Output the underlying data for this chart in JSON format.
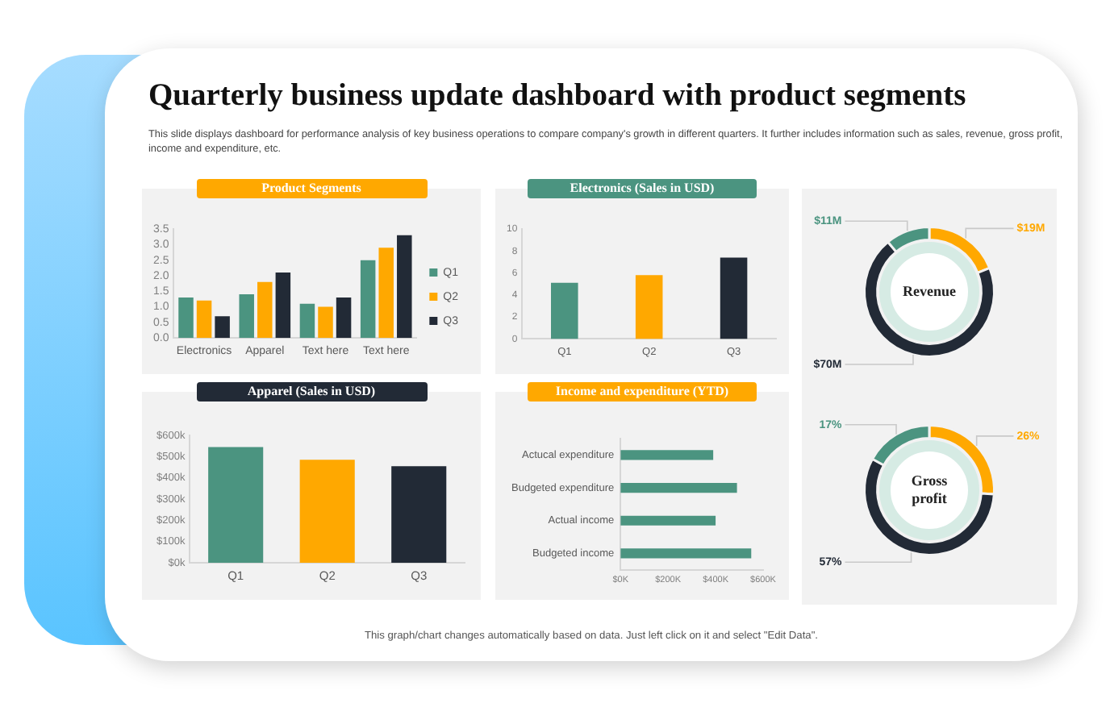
{
  "chart_data": [
    {
      "type": "other",
      "title": "Quarterly business update dashboard with product segments",
      "subtitle": "This slide displays dashboard for performance analysis of key business operations to compare company's growth in different quarters. It further includes information such as sales, revenue, gross profit, income and expenditure, etc.",
      "annotations": [
        "This graph/chart changes automatically based on data. Just left click on it and select \"Edit Data\"."
      ]
    },
    {
      "type": "bar",
      "title": "Product Segments",
      "categories": [
        "Electronics",
        "Apparel",
        "Text here",
        "Text here"
      ],
      "series": [
        {
          "name": "Q1",
          "color": "#4b9480",
          "values": [
            1.3,
            1.4,
            1.1,
            2.5
          ]
        },
        {
          "name": "Q2",
          "color": "#ffa800",
          "values": [
            1.2,
            1.8,
            1.0,
            2.9
          ]
        },
        {
          "name": "Q3",
          "color": "#222a36",
          "values": [
            0.7,
            2.1,
            1.3,
            3.3
          ]
        }
      ],
      "ylim": [
        0,
        3.5
      ],
      "yticks": [
        {
          "value": 0,
          "label": "0.0"
        },
        {
          "value": 0.5,
          "label": "0.5"
        },
        {
          "value": 1,
          "label": "1.0"
        },
        {
          "value": 1.5,
          "label": "1.5"
        },
        {
          "value": 2,
          "label": "2.0"
        },
        {
          "value": 2.5,
          "label": "2.5"
        },
        {
          "value": 3,
          "label": "3.0"
        },
        {
          "value": 3.5,
          "label": "3.5"
        }
      ],
      "legend": "right"
    },
    {
      "type": "bar",
      "title": "Electronics (Sales in USD)",
      "categories": [
        "Q1",
        "Q2",
        "Q3"
      ],
      "values": [
        5.1,
        5.8,
        7.4
      ],
      "colors": [
        "#4b9480",
        "#ffa800",
        "#222a36"
      ],
      "ylim": [
        0,
        10
      ],
      "yticks": [
        0,
        2,
        4,
        6,
        8,
        10
      ]
    },
    {
      "type": "bar",
      "title": "Apparel (Sales in USD)",
      "categories": [
        "Q1",
        "Q2",
        "Q3"
      ],
      "values": [
        545,
        485,
        455
      ],
      "colors": [
        "#4b9480",
        "#ffa800",
        "#222a36"
      ],
      "ylim": [
        0,
        600
      ],
      "yticks": [
        {
          "value": 0,
          "label": "$0k"
        },
        {
          "value": 100,
          "label": "$100k"
        },
        {
          "value": 200,
          "label": "$200k"
        },
        {
          "value": 300,
          "label": "$300k"
        },
        {
          "value": 400,
          "label": "$400k"
        },
        {
          "value": 500,
          "label": "$500k"
        },
        {
          "value": 600,
          "label": "$600k"
        }
      ]
    },
    {
      "type": "bar",
      "orientation": "horizontal",
      "title": "Income and expenditure (YTD)",
      "categories": [
        "Actucal expenditure",
        "Budgeted expenditure",
        "Actual income",
        "Budgeted income"
      ],
      "values": [
        390,
        490,
        400,
        550
      ],
      "color": "#4b9480",
      "xlim": [
        0,
        600
      ],
      "xticks": [
        {
          "value": 0,
          "label": "$0K"
        },
        {
          "value": 200,
          "label": "$200K"
        },
        {
          "value": 400,
          "label": "$400K"
        },
        {
          "value": 600,
          "label": "$600K"
        }
      ]
    },
    {
      "type": "donut",
      "title": "Revenue",
      "categories": [
        null,
        null,
        null
      ],
      "values": [
        19,
        70,
        11
      ],
      "colors": [
        "#ffa800",
        "#222a36",
        "#4b9480"
      ],
      "value_labels": [
        "$19M",
        "$70M",
        "$11M"
      ]
    },
    {
      "type": "donut",
      "title": "Gross profit",
      "categories": [
        null,
        null,
        null
      ],
      "values": [
        26,
        57,
        17
      ],
      "colors": [
        "#ffa800",
        "#222a36",
        "#4b9480"
      ],
      "value_labels": [
        "26%",
        "57%",
        "17%"
      ]
    }
  ]
}
